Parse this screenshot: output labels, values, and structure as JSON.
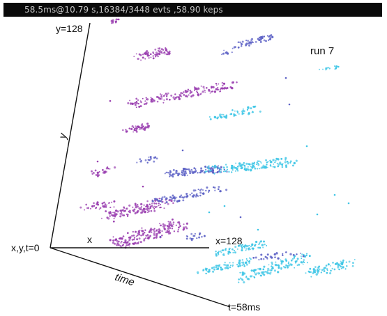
{
  "status_bar": {
    "text": "58.5ms@10.79  s,16384/3448  evts ,58.90 keps"
  },
  "viewer": {
    "run_label": "run 7",
    "axes": {
      "origin_label": "x,y,t=0",
      "x_axis_short": "x",
      "x_axis_end": "x=128",
      "y_axis_short": "y",
      "y_axis_end": "y=128",
      "time_axis_short": "time",
      "time_axis_end": "t=58ms"
    },
    "colors": {
      "axis": "#111111",
      "early_events": "#9a3fb0",
      "mid_events": "#5e63c6",
      "late_events": "#3fc6e6"
    }
  }
}
